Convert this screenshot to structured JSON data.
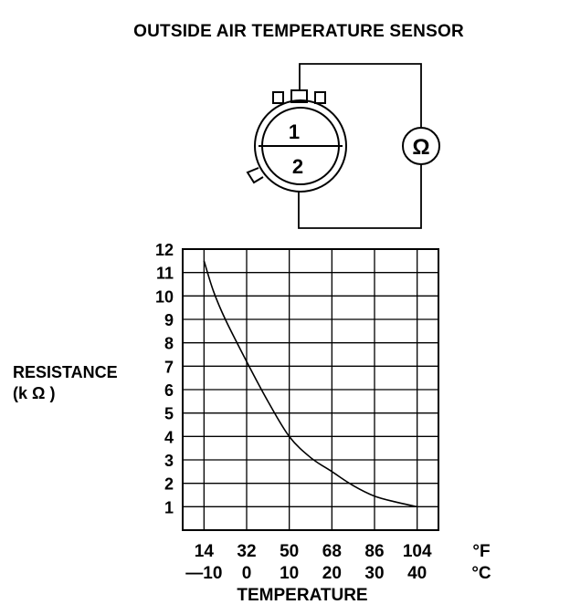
{
  "title": "OUTSIDE AIR TEMPERATURE SENSOR",
  "diagram": {
    "connector_pins": [
      "1",
      "2"
    ],
    "meter_symbol": "Ω"
  },
  "chart_data": {
    "type": "line",
    "title": "OUTSIDE AIR TEMPERATURE SENSOR",
    "ylabel_line1": "RESISTANCE",
    "ylabel_line2": "(k Ω )",
    "xlabel": "TEMPERATURE",
    "x_unit_f": "°F",
    "x_unit_c": "°C",
    "x_ticks_f": [
      "14",
      "32",
      "50",
      "68",
      "86",
      "104"
    ],
    "x_ticks_c": [
      "—10",
      "0",
      "10",
      "20",
      "30",
      "40"
    ],
    "y_ticks": [
      "1",
      "2",
      "3",
      "4",
      "5",
      "6",
      "7",
      "8",
      "9",
      "10",
      "11",
      "12"
    ],
    "xlim_f": [
      5,
      113
    ],
    "ylim": [
      0,
      12
    ],
    "grid": true,
    "series": [
      {
        "x": [
          14,
          18,
          23,
          32,
          41,
          50,
          59,
          68,
          77,
          86,
          95,
          104
        ],
        "y": [
          11.5,
          10.2,
          9.0,
          7.2,
          5.5,
          4.0,
          3.1,
          2.5,
          1.9,
          1.45,
          1.2,
          1.0
        ]
      }
    ]
  }
}
